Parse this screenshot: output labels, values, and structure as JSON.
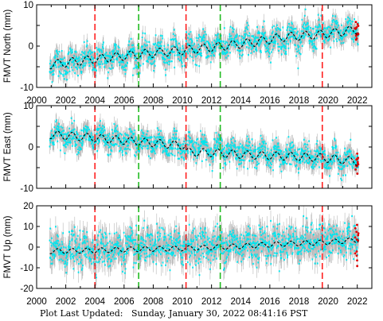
{
  "footer": {
    "label": "Plot Last Updated:",
    "value": "Sunday, January 30, 2022 08:41:16 PST"
  },
  "colors": {
    "daily": "#00e5ee",
    "error_bars": "#b0b0b0",
    "model": "#000000",
    "recent": "#dd0000",
    "offset_equipment": "#ff2020",
    "offset_earthquake": "#22bb22"
  },
  "chart_data": [
    {
      "type": "scatter",
      "ylabel": "FMVT North (mm)",
      "xlim": [
        2000,
        2023
      ],
      "ylim": [
        -10,
        10
      ],
      "xticks": [
        2000,
        2002,
        2004,
        2006,
        2008,
        2010,
        2012,
        2014,
        2016,
        2018,
        2020,
        2022
      ],
      "yticks": [
        -10,
        0,
        10
      ],
      "show_x_tick_labels": true,
      "start_year": 2000.9,
      "end_year": 2022.08,
      "trend": {
        "start": -4.5,
        "end": 4.0
      },
      "seasonal_amplitude": 1.3,
      "scatter_sd": 1.6,
      "error_bar": 1.8,
      "model_line": [
        [
          2000.9,
          -4.5
        ],
        [
          2004.0,
          -3.2
        ],
        [
          2007.0,
          -2.0
        ],
        [
          2010.2,
          -1.0
        ],
        [
          2012.6,
          -0.1
        ],
        [
          2015.0,
          1.0
        ],
        [
          2017.0,
          2.2
        ],
        [
          2019.5,
          2.8
        ],
        [
          2022.08,
          4.0
        ]
      ]
    },
    {
      "type": "scatter",
      "ylabel": "FMVT East (mm)",
      "xlim": [
        2000,
        2023
      ],
      "ylim": [
        -10,
        10
      ],
      "xticks": [
        2000,
        2002,
        2004,
        2006,
        2008,
        2010,
        2012,
        2014,
        2016,
        2018,
        2020,
        2022
      ],
      "yticks": [
        -10,
        0,
        10
      ],
      "show_x_tick_labels": false,
      "start_year": 2000.9,
      "end_year": 2022.08,
      "trend": {
        "start": 3.0,
        "end": -3.5
      },
      "seasonal_amplitude": 1.2,
      "scatter_sd": 1.4,
      "error_bar": 1.8,
      "model_line": [
        [
          2000.9,
          3.0
        ],
        [
          2004.0,
          2.2
        ],
        [
          2007.0,
          1.3
        ],
        [
          2010.2,
          0.3
        ],
        [
          2010.3,
          -1.2
        ],
        [
          2012.6,
          -1.5
        ],
        [
          2015.0,
          -2.0
        ],
        [
          2017.0,
          -2.2
        ],
        [
          2019.5,
          -2.6
        ],
        [
          2022.08,
          -3.5
        ]
      ]
    },
    {
      "type": "scatter",
      "ylabel": "FMVT Up (mm)",
      "xlim": [
        2000,
        2023
      ],
      "ylim": [
        -20,
        20
      ],
      "xticks": [
        2000,
        2002,
        2004,
        2006,
        2008,
        2010,
        2012,
        2014,
        2016,
        2018,
        2020,
        2022
      ],
      "yticks": [
        -20,
        -10,
        0,
        10,
        20
      ],
      "show_x_tick_labels": true,
      "start_year": 2000.9,
      "end_year": 2022.08,
      "trend": {
        "start": -2.0,
        "end": 3.5
      },
      "seasonal_amplitude": 1.5,
      "scatter_sd": 4.2,
      "error_bar": 5.0,
      "model_line": [
        [
          2000.9,
          -2.0
        ],
        [
          2004.0,
          -1.6
        ],
        [
          2007.0,
          -1.0
        ],
        [
          2010.2,
          -0.6
        ],
        [
          2012.6,
          0.0
        ],
        [
          2015.0,
          0.8
        ],
        [
          2017.0,
          1.6
        ],
        [
          2019.5,
          2.2
        ],
        [
          2022.08,
          3.5
        ]
      ]
    }
  ],
  "offsets": {
    "equipment_red": [
      2004.0,
      2010.25,
      2019.6
    ],
    "earthquake_green": [
      2007.0,
      2012.6
    ]
  }
}
